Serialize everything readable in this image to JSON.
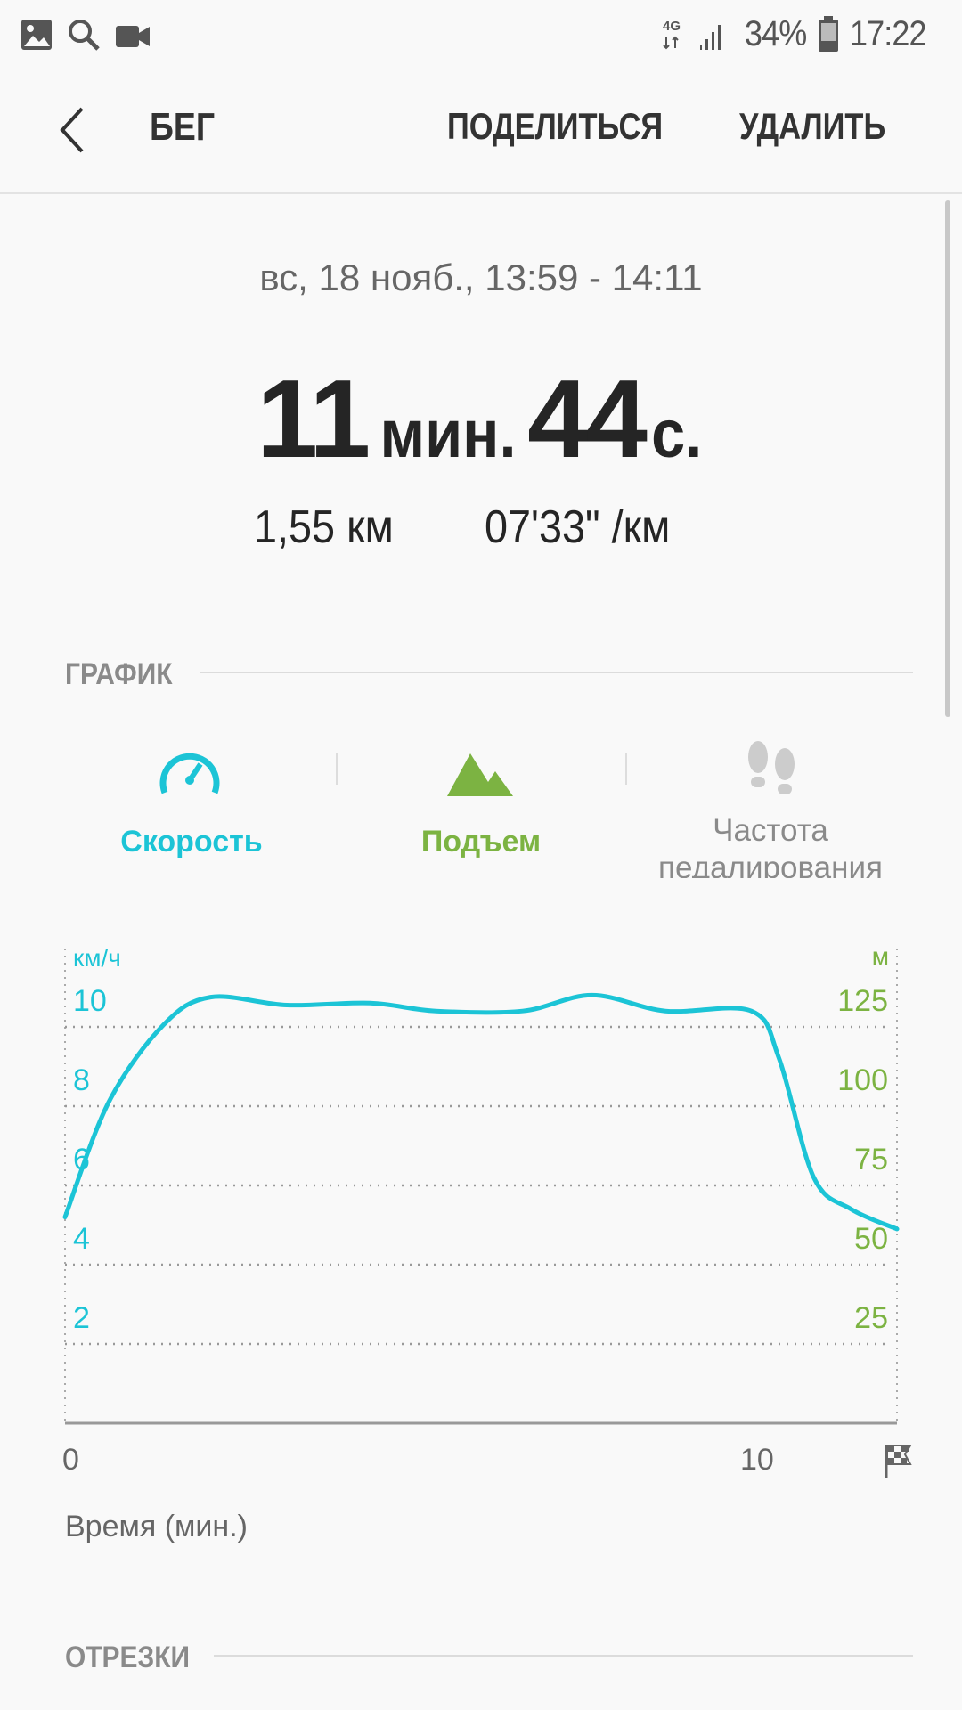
{
  "status_bar": {
    "icons": [
      "gallery-icon",
      "search-icon",
      "video-icon"
    ],
    "network": "4G",
    "battery": "34%",
    "time": "17:22"
  },
  "header": {
    "title": "БЕГ",
    "share": "ПОДЕЛИТЬСЯ",
    "delete": "УДАЛИТЬ"
  },
  "summary": {
    "date": "вс, 18 нояб., 13:59 - 14:11",
    "min_value": "11",
    "min_unit": "мин.",
    "sec_value": "44",
    "sec_unit": "с.",
    "distance": "1,55 км",
    "pace": "07'33\" /км"
  },
  "graph": {
    "section_title": "ГРАФИК",
    "tabs": [
      {
        "label": "Скорость",
        "icon": "speedometer-icon",
        "color": "#1cc4d6"
      },
      {
        "label": "Подъем",
        "icon": "mountain-icon",
        "color": "#7cb342"
      },
      {
        "label": "Частота педалирования",
        "icon": "footsteps-icon",
        "color": "#9e9e9e"
      }
    ]
  },
  "chart_data": {
    "type": "line",
    "xlabel": "Время (мин.)",
    "ylabel_left": "км/ч",
    "ylabel_right": "м",
    "x_ticks": [
      "0",
      "10"
    ],
    "y_ticks_left": [
      "2",
      "4",
      "6",
      "8",
      "10"
    ],
    "y_ticks_right": [
      "25",
      "50",
      "75",
      "100",
      "125"
    ],
    "xlim": [
      0,
      12
    ],
    "ylim_left": [
      0,
      12
    ],
    "ylim_right": [
      0,
      150
    ],
    "grid": true,
    "series": [
      {
        "color": "#1cc4d6",
        "x": [
          0,
          0.63,
          1.42,
          2.1,
          3.2,
          4.4,
          5.35,
          6.6,
          7.6,
          8.66,
          9.9,
          10.3,
          10.8,
          11.34,
          12
        ],
        "y": [
          5.2,
          8.1,
          10.05,
          10.75,
          10.55,
          10.6,
          10.4,
          10.4,
          10.8,
          10.4,
          10.4,
          9.2,
          6.2,
          5.4,
          4.9
        ]
      }
    ],
    "colors": {
      "left_axis": "#1cc4d6",
      "right_axis": "#7cb342"
    }
  },
  "segments": {
    "section_title": "ОТРЕЗКИ"
  }
}
